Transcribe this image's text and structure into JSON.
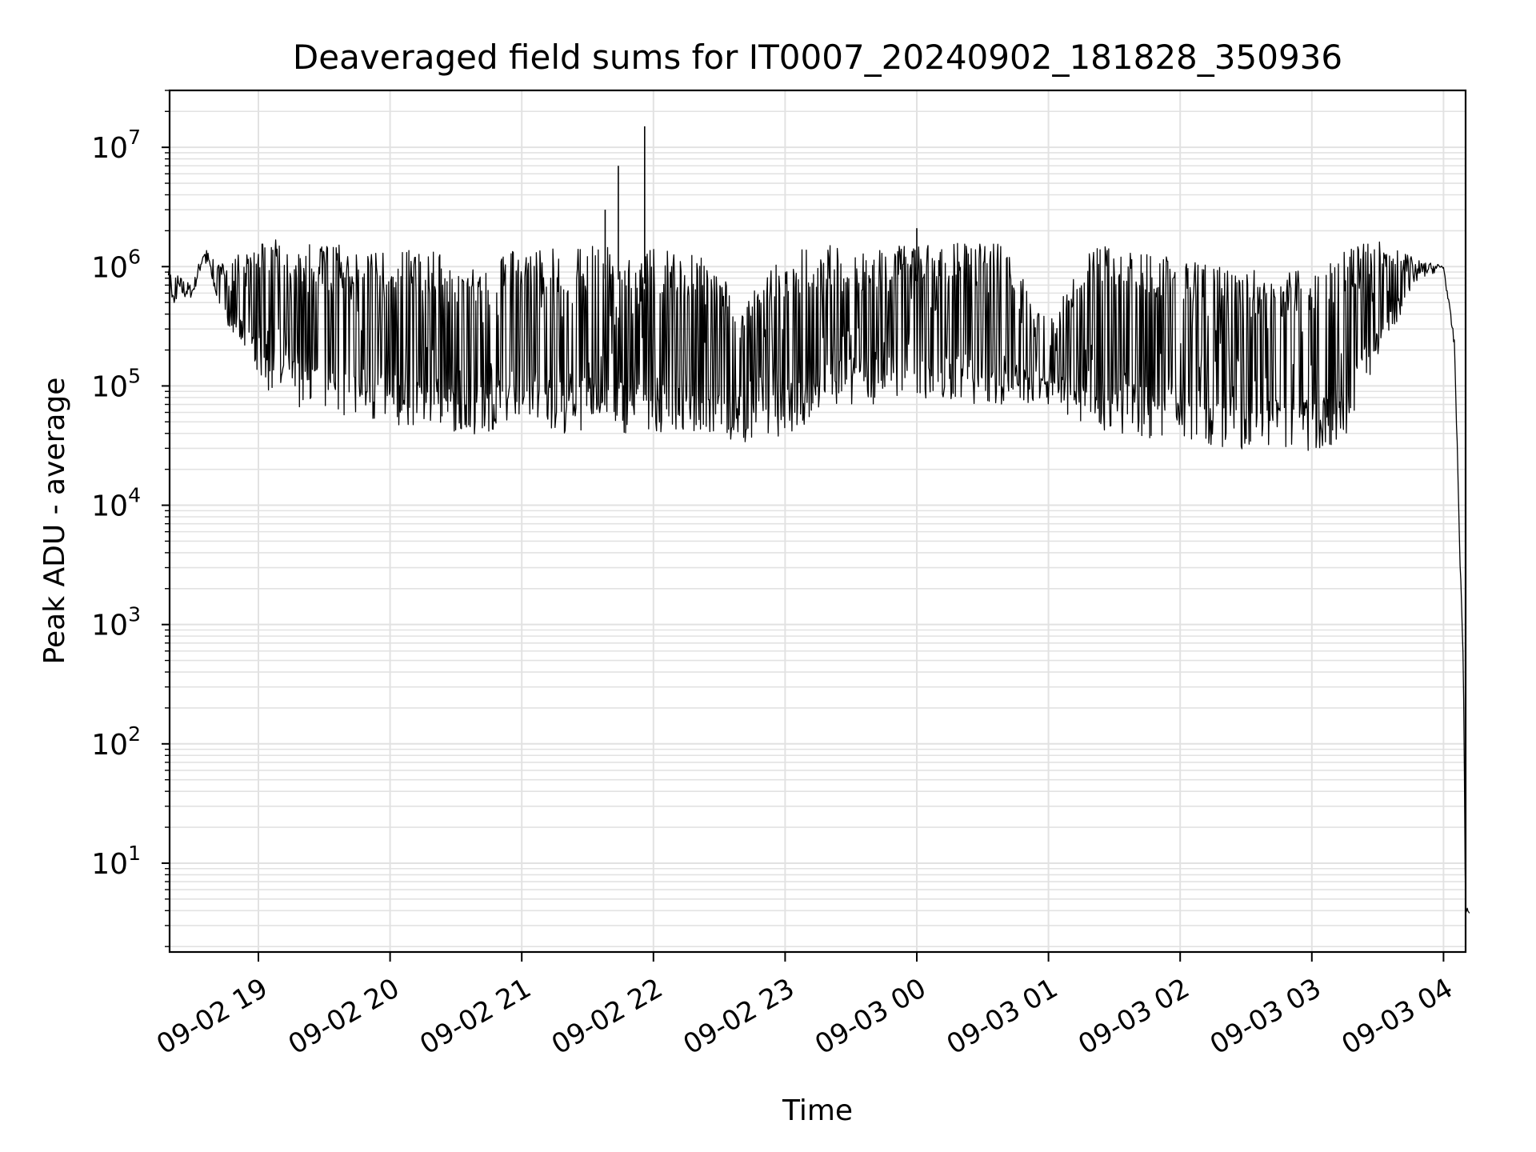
{
  "chart_data": {
    "type": "line",
    "title": "Deaveraged field sums for IT0007_20240902_181828_350936",
    "xlabel": "Time",
    "ylabel": "Peak ADU - average",
    "yscale": "log",
    "ylim": [
      1.8,
      30000000
    ],
    "xlim": [
      "09-02 18:19",
      "09-03 04:12"
    ],
    "grid": true,
    "x_ticks": [
      "09-02 19",
      "09-02 20",
      "09-02 21",
      "09-02 22",
      "09-02 23",
      "09-03 00",
      "09-03 01",
      "09-03 02",
      "09-03 03",
      "09-03 04"
    ],
    "y_ticks": [
      {
        "base": "10",
        "exp": "1",
        "value": 10
      },
      {
        "base": "10",
        "exp": "2",
        "value": 100
      },
      {
        "base": "10",
        "exp": "3",
        "value": 1000
      },
      {
        "base": "10",
        "exp": "4",
        "value": 10000
      },
      {
        "base": "10",
        "exp": "5",
        "value": 100000
      },
      {
        "base": "10",
        "exp": "6",
        "value": 1000000
      },
      {
        "base": "10",
        "exp": "7",
        "value": 10000000
      }
    ],
    "series": [
      {
        "color": "#000000",
        "envelope": [
          {
            "t": "09-02 18:19",
            "low": 480000,
            "high": 1000000
          },
          {
            "t": "09-02 18:30",
            "low": 550000,
            "high": 700000
          },
          {
            "t": "09-02 18:35",
            "low": 1100000,
            "high": 1500000
          },
          {
            "t": "09-02 18:45",
            "low": 350000,
            "high": 1000000
          },
          {
            "t": "09-02 18:55",
            "low": 180000,
            "high": 1500000
          },
          {
            "t": "09-02 19:05",
            "low": 85000,
            "high": 1700000
          },
          {
            "t": "09-02 19:20",
            "low": 65000,
            "high": 1600000
          },
          {
            "t": "09-02 19:40",
            "low": 55000,
            "high": 1500000
          },
          {
            "t": "09-02 20:00",
            "low": 45000,
            "high": 1400000
          },
          {
            "t": "09-02 20:20",
            "low": 45000,
            "high": 1400000
          },
          {
            "t": "09-02 20:40",
            "low": 38000,
            "high": 900000
          },
          {
            "t": "09-02 21:00",
            "low": 55000,
            "high": 1500000
          },
          {
            "t": "09-02 21:20",
            "low": 40000,
            "high": 1400000
          },
          {
            "t": "09-02 21:40",
            "low": 40000,
            "high": 1600000
          },
          {
            "t": "09-02 22:00",
            "low": 40000,
            "high": 1400000
          },
          {
            "t": "09-02 22:20",
            "low": 40000,
            "high": 1300000
          },
          {
            "t": "09-02 22:40",
            "low": 34000,
            "high": 600000
          },
          {
            "t": "09-02 23:00",
            "low": 35000,
            "high": 1400000
          },
          {
            "t": "09-02 23:20",
            "low": 70000,
            "high": 1500000
          },
          {
            "t": "09-02 23:40",
            "low": 70000,
            "high": 1500000
          },
          {
            "t": "09-03 00:00",
            "low": 80000,
            "high": 1500000
          },
          {
            "t": "09-03 00:20",
            "low": 70000,
            "high": 1600000
          },
          {
            "t": "09-03 00:40",
            "low": 70000,
            "high": 1600000
          },
          {
            "t": "09-03 01:00",
            "low": 70000,
            "high": 350000
          },
          {
            "t": "09-03 01:20",
            "low": 45000,
            "high": 1500000
          },
          {
            "t": "09-03 01:40",
            "low": 35000,
            "high": 1400000
          },
          {
            "t": "09-03 02:00",
            "low": 35000,
            "high": 1300000
          },
          {
            "t": "09-03 02:20",
            "low": 30000,
            "high": 1000000
          },
          {
            "t": "09-03 02:40",
            "low": 28000,
            "high": 900000
          },
          {
            "t": "09-03 03:00",
            "low": 28000,
            "high": 1000000
          },
          {
            "t": "09-03 03:15",
            "low": 35000,
            "high": 1500000
          },
          {
            "t": "09-03 03:30",
            "low": 180000,
            "high": 1700000
          },
          {
            "t": "09-03 03:50",
            "low": 800000,
            "high": 1100000
          },
          {
            "t": "09-03 04:00",
            "low": 950000,
            "high": 1050000
          },
          {
            "t": "09-03 04:05",
            "low": 200000,
            "high": 250000
          },
          {
            "t": "09-03 04:08",
            "low": 1500,
            "high": 2000
          },
          {
            "t": "09-03 04:09",
            "low": 500,
            "high": 1200
          },
          {
            "t": "09-03 04:10",
            "low": 3.8,
            "high": 4.5
          },
          {
            "t": "09-03 04:12",
            "low": 3.8,
            "high": 3.8
          }
        ],
        "spikes": [
          {
            "t": "09-02 21:38",
            "value": 3000000
          },
          {
            "t": "09-02 21:44",
            "value": 7000000
          },
          {
            "t": "09-02 21:56",
            "value": 15000000
          },
          {
            "t": "09-03 00:00",
            "value": 2100000
          }
        ]
      }
    ]
  }
}
